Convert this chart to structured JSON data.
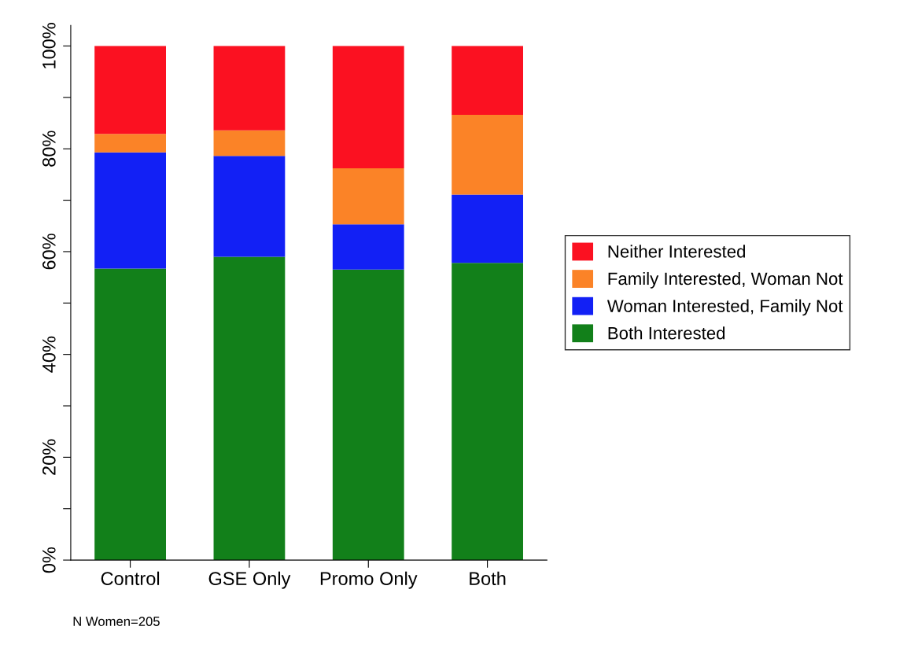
{
  "chart_data": {
    "type": "bar",
    "stacked": true,
    "categories": [
      "Control",
      "GSE Only",
      "Promo Only",
      "Both"
    ],
    "series": [
      {
        "name": "Both Interested",
        "color": "#12801a",
        "values": [
          56.7,
          59.0,
          56.5,
          57.8
        ]
      },
      {
        "name": "Woman Interested, Family Not",
        "color": "#1220f5",
        "values": [
          22.6,
          19.6,
          8.8,
          13.3
        ]
      },
      {
        "name": "Family Interested, Woman Not",
        "color": "#fb8327",
        "values": [
          3.6,
          5.0,
          10.9,
          15.5
        ]
      },
      {
        "name": "Neither Interested",
        "color": "#fb1121",
        "values": [
          17.1,
          16.4,
          23.8,
          13.4
        ]
      }
    ],
    "ylim": [
      0,
      104
    ],
    "yticks": [
      {
        "value": 0,
        "label": "0%"
      },
      {
        "value": 10,
        "label": null
      },
      {
        "value": 20,
        "label": "20%"
      },
      {
        "value": 30,
        "label": null
      },
      {
        "value": 40,
        "label": "40%"
      },
      {
        "value": 50,
        "label": null
      },
      {
        "value": 60,
        "label": "60%"
      },
      {
        "value": 70,
        "label": null
      },
      {
        "value": 80,
        "label": "80%"
      },
      {
        "value": 90,
        "label": null
      },
      {
        "value": 100,
        "label": "100%"
      }
    ],
    "grid": false,
    "legend": "right",
    "annotations": [
      "N Women=205"
    ]
  }
}
